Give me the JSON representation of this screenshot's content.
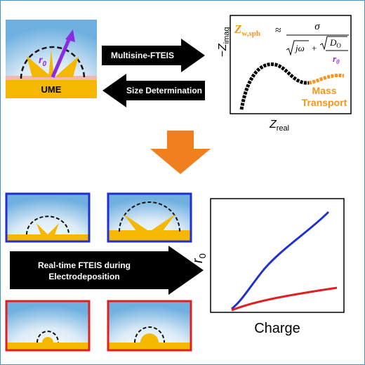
{
  "top": {
    "electrode_label": "UME",
    "radius_label": {
      "symbol": "r",
      "subscript": "0"
    },
    "arrow_forward": "Multisine-FTEIS",
    "arrow_back": "Size Determination",
    "nyquist": {
      "y_label": {
        "symbol": "−Z",
        "subscript": "imag"
      },
      "x_label": {
        "symbol": "Z",
        "subscript": "real"
      },
      "equation": {
        "lhs": "Z",
        "lhs_sub": "w,sph",
        "relation": "≈",
        "numerator": "σ",
        "term1": "jω",
        "plus": "+",
        "diff": "D",
        "diff_sub": "O",
        "radius": "r",
        "radius_sub": "0"
      },
      "annotation": [
        "Mass",
        "Transport"
      ]
    }
  },
  "bottom": {
    "arrow": [
      "Real-time FTEIS during",
      "Electrodeposition"
    ],
    "plot": {
      "y_label": {
        "symbol": "r",
        "subscript": "0"
      },
      "x_label": "Charge"
    }
  }
}
